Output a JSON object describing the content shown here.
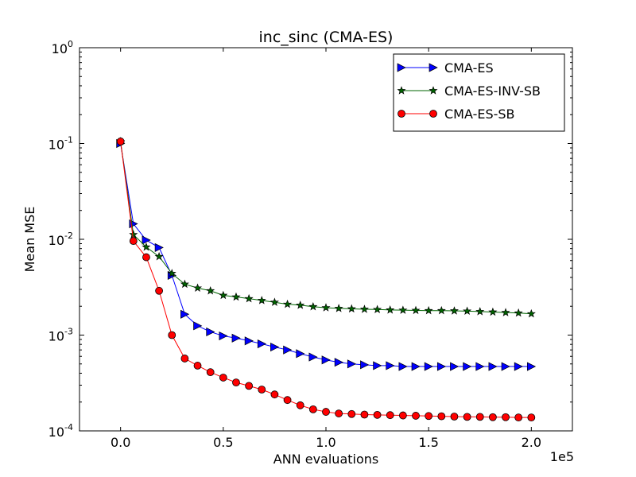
{
  "chart_data": {
    "type": "line",
    "title": "inc_sinc (CMA-ES)",
    "xlabel": "ANN evaluations",
    "ylabel": "Mean MSE",
    "x_offset_label": "1e5",
    "xlim": [
      -0.2,
      2.2
    ],
    "ylim": [
      0.0001,
      1
    ],
    "yscale": "log",
    "x_ticks": [
      {
        "value": 0.0,
        "label": "0.0"
      },
      {
        "value": 0.5,
        "label": "0.5"
      },
      {
        "value": 1.0,
        "label": "1.0"
      },
      {
        "value": 1.5,
        "label": "1.5"
      },
      {
        "value": 2.0,
        "label": "2.0"
      }
    ],
    "y_ticks": [
      {
        "exp": 0,
        "base": "10",
        "sup": "0"
      },
      {
        "exp": -1,
        "base": "10",
        "sup": "-1"
      },
      {
        "exp": -2,
        "base": "10",
        "sup": "-2"
      },
      {
        "exp": -3,
        "base": "10",
        "sup": "-3"
      },
      {
        "exp": -4,
        "base": "10",
        "sup": "-4"
      }
    ],
    "legend_position": "top-right",
    "series": [
      {
        "name": "CMA-ES",
        "color": "#0000ff",
        "marker": "triangle-right",
        "x": [
          0.0,
          0.0625,
          0.125,
          0.1875,
          0.25,
          0.3125,
          0.375,
          0.4375,
          0.5,
          0.5625,
          0.625,
          0.6875,
          0.75,
          0.8125,
          0.875,
          0.9375,
          1.0,
          1.0625,
          1.125,
          1.1875,
          1.25,
          1.3125,
          1.375,
          1.4375,
          1.5,
          1.5625,
          1.625,
          1.6875,
          1.75,
          1.8125,
          1.875,
          1.9375,
          2.0
        ],
        "y": [
          0.1,
          0.0145,
          0.0098,
          0.0082,
          0.0042,
          0.00165,
          0.00125,
          0.00108,
          0.00098,
          0.00093,
          0.00087,
          0.00081,
          0.00075,
          0.0007,
          0.00064,
          0.00059,
          0.00055,
          0.00052,
          0.0005,
          0.00049,
          0.00048,
          0.00048,
          0.00047,
          0.00047,
          0.00047,
          0.00047,
          0.00047,
          0.00047,
          0.00047,
          0.00047,
          0.00047,
          0.00047,
          0.00047
        ]
      },
      {
        "name": "CMA-ES-INV-SB",
        "color": "#006400",
        "marker": "star",
        "x": [
          0.0,
          0.0625,
          0.125,
          0.1875,
          0.25,
          0.3125,
          0.375,
          0.4375,
          0.5,
          0.5625,
          0.625,
          0.6875,
          0.75,
          0.8125,
          0.875,
          0.9375,
          1.0,
          1.0625,
          1.125,
          1.1875,
          1.25,
          1.3125,
          1.375,
          1.4375,
          1.5,
          1.5625,
          1.625,
          1.6875,
          1.75,
          1.8125,
          1.875,
          1.9375,
          2.0
        ],
        "y": [
          0.105,
          0.0112,
          0.0083,
          0.0066,
          0.0044,
          0.0034,
          0.0031,
          0.0029,
          0.0026,
          0.0025,
          0.0024,
          0.0023,
          0.0022,
          0.0021,
          0.00205,
          0.00198,
          0.00193,
          0.0019,
          0.00188,
          0.00186,
          0.00185,
          0.00183,
          0.00182,
          0.00181,
          0.0018,
          0.0018,
          0.00179,
          0.00178,
          0.00176,
          0.00174,
          0.00172,
          0.0017,
          0.00167
        ]
      },
      {
        "name": "CMA-ES-SB",
        "color": "#ff0000",
        "marker": "circle",
        "x": [
          0.0,
          0.0625,
          0.125,
          0.1875,
          0.25,
          0.3125,
          0.375,
          0.4375,
          0.5,
          0.5625,
          0.625,
          0.6875,
          0.75,
          0.8125,
          0.875,
          0.9375,
          1.0,
          1.0625,
          1.125,
          1.1875,
          1.25,
          1.3125,
          1.375,
          1.4375,
          1.5,
          1.5625,
          1.625,
          1.6875,
          1.75,
          1.8125,
          1.875,
          1.9375,
          2.0
        ],
        "y": [
          0.105,
          0.0096,
          0.0065,
          0.0029,
          0.001,
          0.00057,
          0.00048,
          0.00041,
          0.00036,
          0.00032,
          0.000295,
          0.00027,
          0.00024,
          0.00021,
          0.000185,
          0.000168,
          0.000158,
          0.000152,
          0.00015,
          0.000148,
          0.000147,
          0.000146,
          0.000145,
          0.000144,
          0.000143,
          0.000142,
          0.000141,
          0.00014,
          0.00014,
          0.000139,
          0.000139,
          0.000138,
          0.000138
        ]
      }
    ]
  }
}
